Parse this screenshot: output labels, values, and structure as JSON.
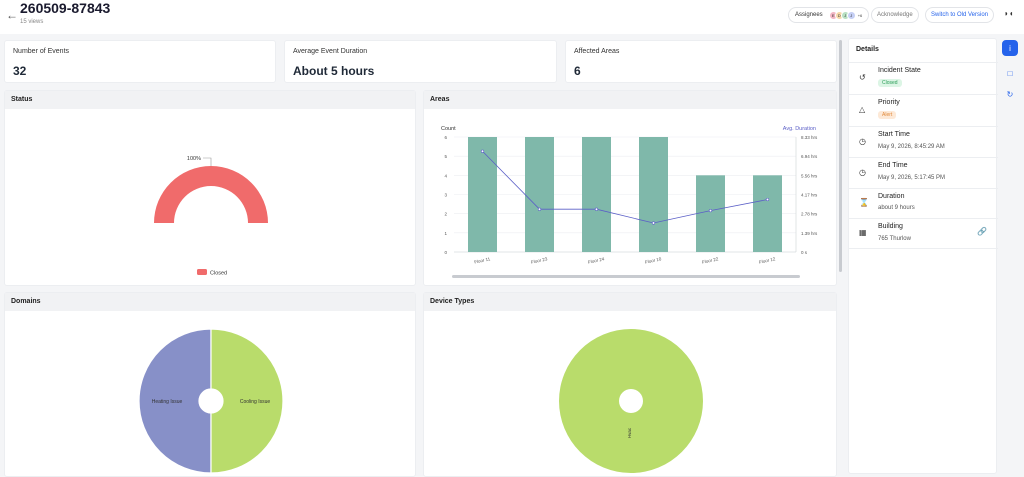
{
  "header": {
    "back_icon": "arrow-left-icon",
    "incident_id": "260509-87843",
    "views": "15 views",
    "assignees_label": "Assignees",
    "assignee_initials": [
      "E",
      "D",
      "J",
      "J"
    ],
    "assignee_more": "+6",
    "acknowledge_label": "Acknowledge",
    "switch_label": "Switch to Old Version",
    "collapse_icon": "collapse-panel-icon"
  },
  "stats": [
    {
      "label": "Number of Events",
      "value": "32"
    },
    {
      "label": "Average Event Duration",
      "value": "About 5 hours"
    },
    {
      "label": "Affected Areas",
      "value": "6"
    }
  ],
  "panels": {
    "status": {
      "title": "Status"
    },
    "areas": {
      "title": "Areas"
    },
    "domains": {
      "title": "Domains"
    },
    "device_types": {
      "title": "Device Types"
    }
  },
  "details": {
    "title": "Details",
    "incident_state": {
      "label": "Incident State",
      "value": "Closed"
    },
    "priority": {
      "label": "Priority",
      "value": "Alert"
    },
    "start_time": {
      "label": "Start Time",
      "value": "May 9, 2026, 8:45:29 AM"
    },
    "end_time": {
      "label": "End Time",
      "value": "May 9, 2026, 5:17:45 PM"
    },
    "duration": {
      "label": "Duration",
      "value": "about 9 hours"
    },
    "building": {
      "label": "Building",
      "value": "765 Thurlow"
    }
  },
  "colors": {
    "status_closed": "#f06b6b",
    "areas_bar": "#7fb8aa",
    "areas_line": "#5b5fc7",
    "domains_heating": "#8790c8",
    "domains_cooling": "#b9dc6b",
    "device_types": "#b9dc6b",
    "accent": "#2563eb"
  },
  "chart_data": [
    {
      "type": "pie",
      "name": "Status",
      "labels": [
        "Closed"
      ],
      "values": [
        100
      ],
      "slice_label": "100%",
      "legend": [
        "Closed"
      ],
      "legend_position": "bottom"
    },
    {
      "type": "bar",
      "name": "Areas",
      "categories": [
        "Floor 11",
        "Floor 23",
        "Floor 24",
        "Floor 10",
        "Floor 22",
        "Floor 12"
      ],
      "series": [
        {
          "values": [
            6,
            6,
            6,
            6,
            4,
            4
          ]
        },
        {
          "name": "Avg. Duration",
          "type": "line",
          "axis": "right",
          "values": [
            7.3,
            3.1,
            3.1,
            2.1,
            3.0,
            3.8
          ]
        }
      ],
      "ylabel": "Count",
      "ylim": [
        0,
        6
      ],
      "y_ticks": [
        "0",
        "1",
        "2",
        "3",
        "4",
        "5",
        "6"
      ],
      "y2lim": [
        0,
        8.33
      ],
      "y2_ticks": [
        "0 s",
        "1.39 hrs",
        "2.78 hrs",
        "4.17 hrs",
        "5.56 hrs",
        "6.94 hrs",
        "8.33 hrs"
      ],
      "grid": true
    },
    {
      "type": "pie",
      "name": "Domains",
      "labels": [
        "Heating Issue",
        "Cooling Issue"
      ],
      "values": [
        50,
        50
      ],
      "donut": true
    },
    {
      "type": "pie",
      "name": "Device Types",
      "labels": [
        "Hvac"
      ],
      "values": [
        100
      ],
      "donut": true
    }
  ]
}
